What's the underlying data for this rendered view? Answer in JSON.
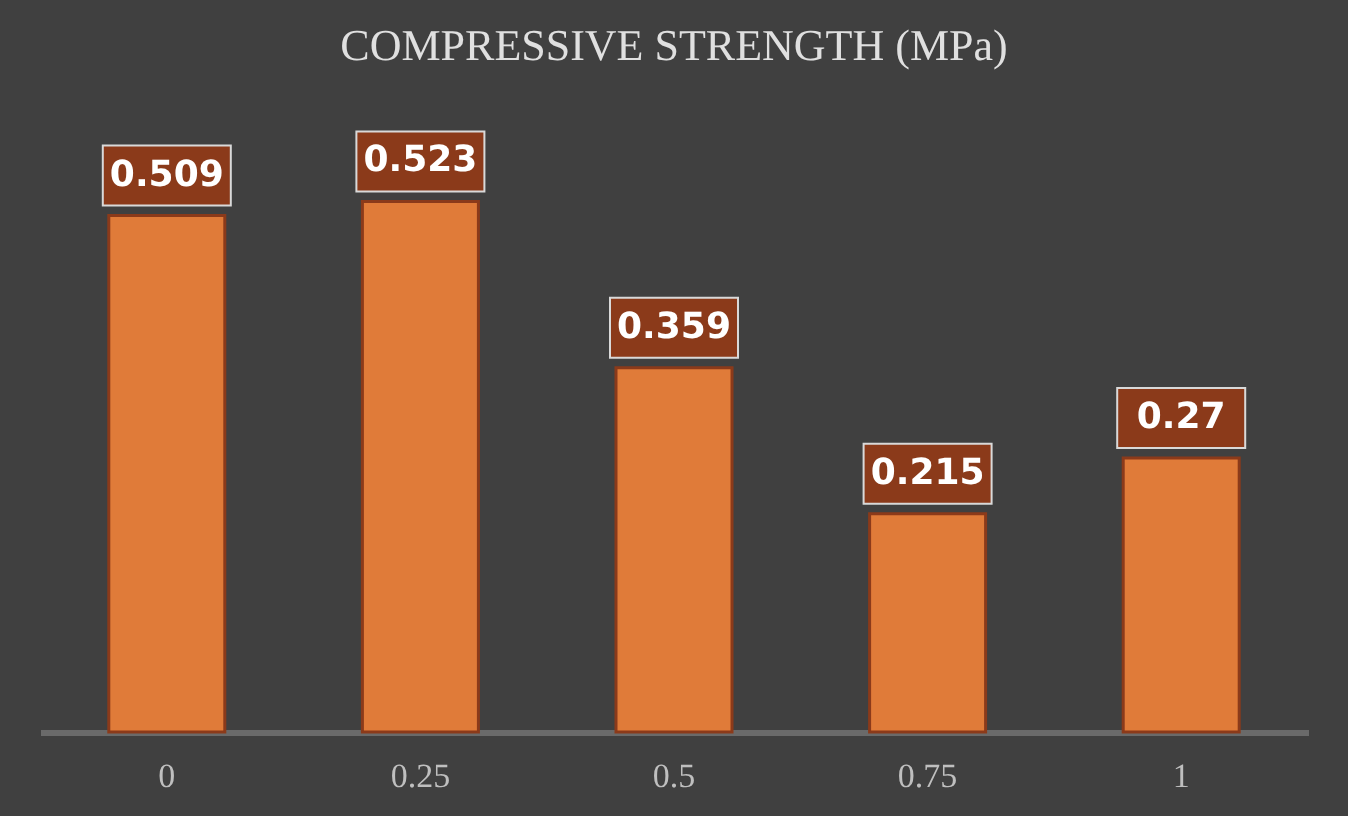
{
  "chart_data": {
    "type": "bar",
    "title": "COMPRESSIVE STRENGTH (MPa)",
    "categories": [
      "0",
      "0.25",
      "0.5",
      "0.75",
      "1"
    ],
    "values": [
      0.509,
      0.523,
      0.359,
      0.215,
      0.27
    ],
    "color": "#e07b39",
    "data_labels": true
  }
}
